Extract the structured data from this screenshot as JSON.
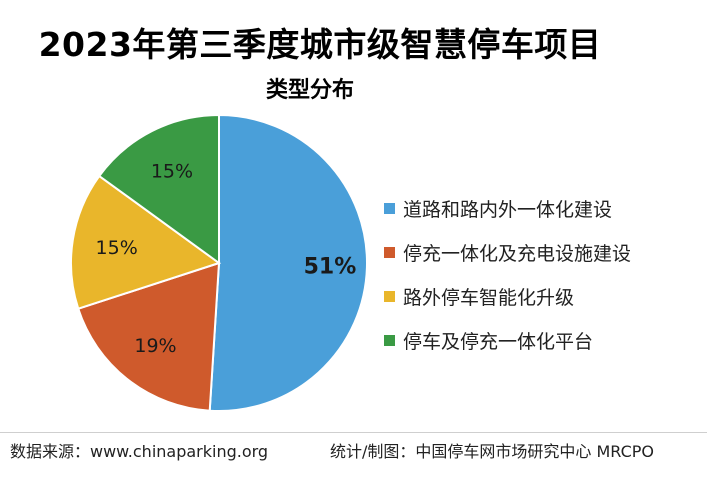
{
  "title": "2023年第三季度城市级智慧停车项目",
  "subtitle": "类型分布",
  "chart_data": {
    "type": "pie",
    "categories": [
      "道路和路内外一体化建设",
      "停充一体化及充电设施建设",
      "路外停车智能化升级",
      "停车及停充一体化平台"
    ],
    "values": [
      51,
      19,
      15,
      15
    ],
    "labels": [
      "51%",
      "19%",
      "15%",
      "15%"
    ],
    "colors": [
      "#4a9fd9",
      "#cf5a2c",
      "#e9b62b",
      "#3a9a44"
    ],
    "legend_position": "right"
  },
  "footer": {
    "source": "数据来源：www.chinaparking.org",
    "credit": "统计/制图：中国停车网市场研究中心 MRCPO"
  },
  "watermark": "中国停车网市场研究中心 MRCPO"
}
